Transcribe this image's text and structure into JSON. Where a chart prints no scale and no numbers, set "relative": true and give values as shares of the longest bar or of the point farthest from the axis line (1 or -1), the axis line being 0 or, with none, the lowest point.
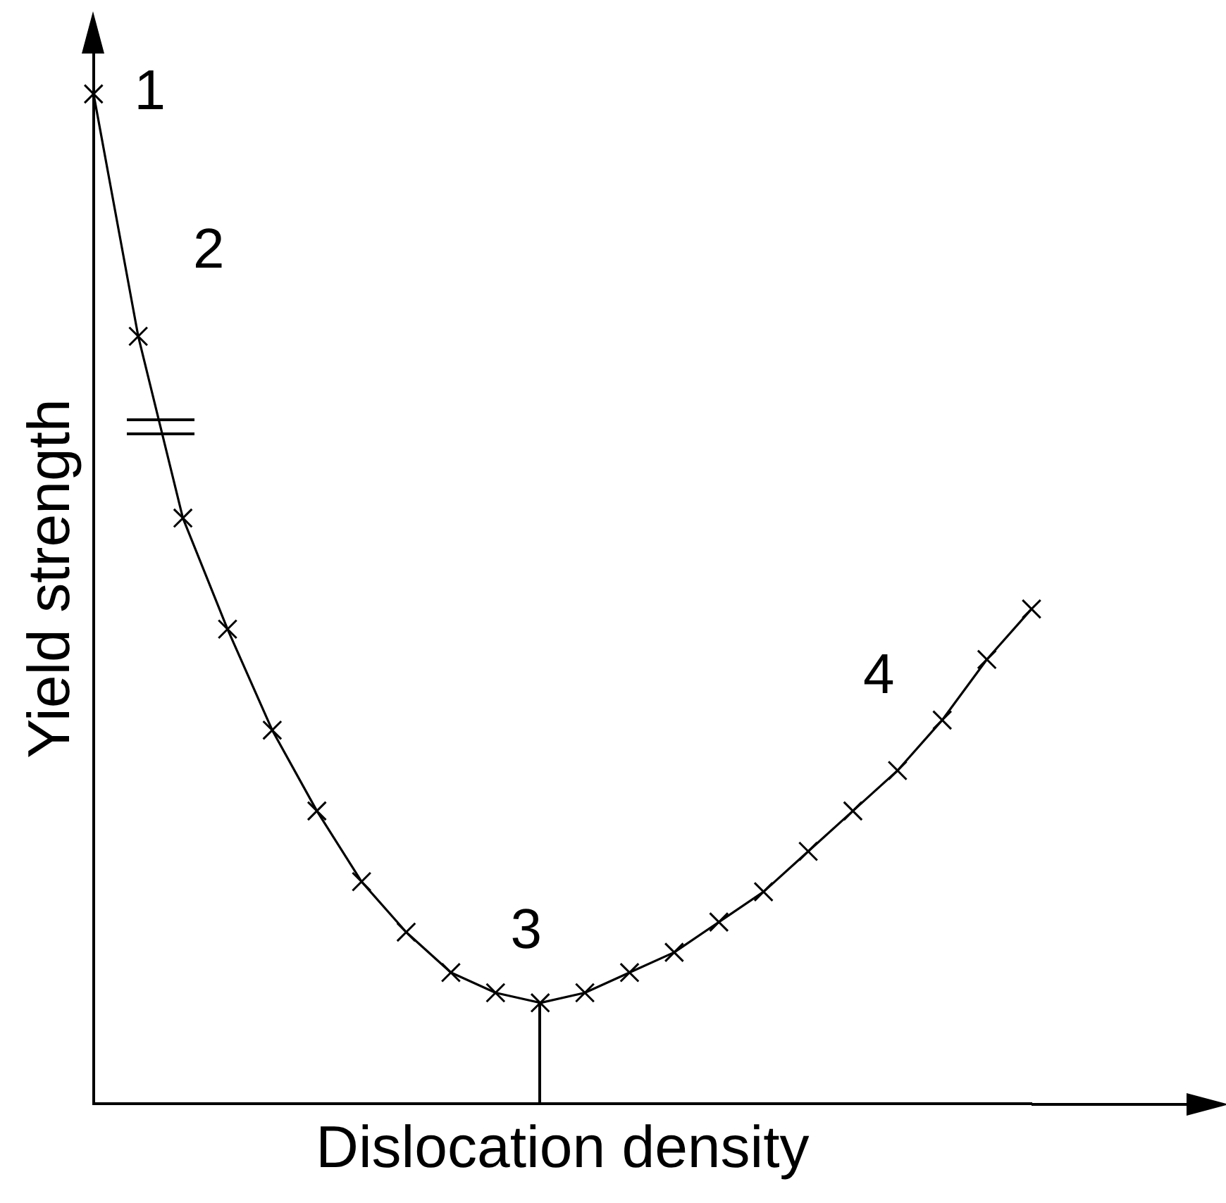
{
  "chart_data": {
    "type": "line",
    "relative": true,
    "xlabel": "Dislocation density",
    "ylabel": "Yield strength",
    "grid": false,
    "legend": false,
    "tick_labels": false,
    "categories": [
      null,
      null,
      null,
      null,
      null,
      null,
      null,
      null,
      null,
      null,
      null,
      null,
      null,
      null,
      null,
      null,
      null,
      null,
      null,
      null,
      null,
      null
    ],
    "series": [
      {
        "type": "line",
        "color": "#000000",
        "marker": "cross",
        "line_style": "solid",
        "values": [
          1.0,
          0.76,
          0.58,
          0.47,
          0.37,
          0.29,
          0.22,
          0.17,
          0.13,
          0.11,
          0.1,
          0.11,
          0.13,
          0.15,
          0.18,
          0.21,
          0.25,
          0.29,
          0.33,
          0.38,
          0.44,
          0.49
        ]
      }
    ],
    "annotations": [
      "1",
      "2",
      "3",
      "4"
    ]
  }
}
